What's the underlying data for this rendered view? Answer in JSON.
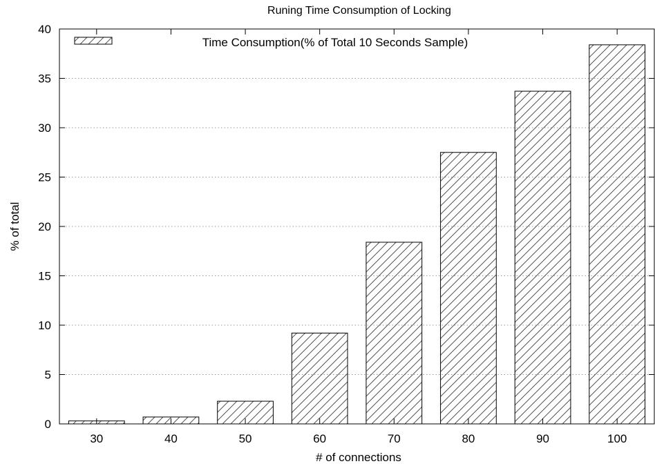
{
  "chart_data": {
    "type": "bar",
    "title": "Runing Time Consumption of Locking",
    "xlabel": "# of connections",
    "ylabel": "% of total",
    "categories": [
      "30",
      "40",
      "50",
      "60",
      "70",
      "80",
      "90",
      "100"
    ],
    "series": [
      {
        "name": "Time Consumption(% of Total 10 Seconds Sample)",
        "values": [
          0.3,
          0.7,
          2.3,
          9.2,
          18.4,
          27.5,
          33.7,
          38.4
        ],
        "fill": "hatch-diagonal"
      }
    ],
    "ylim": [
      0,
      40
    ],
    "yticks": [
      0,
      5,
      10,
      15,
      20,
      25,
      30,
      35,
      40
    ],
    "grid": true,
    "legend_position": "top"
  },
  "colors": {
    "background": "#ffffff",
    "ink": "#000000",
    "grid": "#9a9a9a",
    "hatch": "#555555"
  }
}
